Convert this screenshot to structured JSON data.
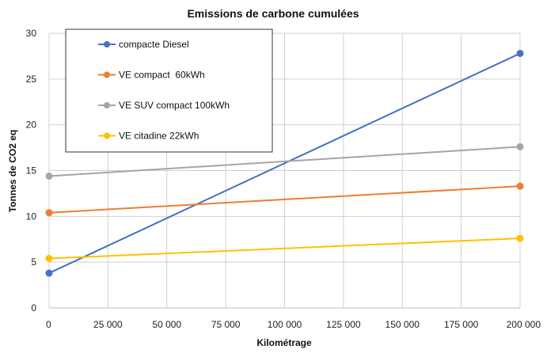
{
  "chart_data": {
    "type": "line",
    "title": "Emissions de carbone cumulées",
    "xlabel": "Kilométrage",
    "ylabel": "Tonnes de CO2 eq",
    "xlim": [
      0,
      200000
    ],
    "ylim": [
      0,
      30
    ],
    "x_ticks": [
      "0",
      "25 000",
      "50 000",
      "75 000",
      "100 000",
      "125 000",
      "150 000",
      "175 000",
      "200 000"
    ],
    "y_ticks": [
      "0",
      "5",
      "10",
      "15",
      "20",
      "25",
      "30"
    ],
    "grid": true,
    "legend_position": "top-left",
    "series": [
      {
        "name": "compacte Diesel",
        "color": "#4472c4",
        "x": [
          0,
          200000
        ],
        "y": [
          3.8,
          27.8
        ]
      },
      {
        "name": "VE compact  60kWh",
        "color": "#ed7d31",
        "x": [
          0,
          200000
        ],
        "y": [
          10.4,
          13.3
        ]
      },
      {
        "name": "VE SUV compact 100kWh",
        "color": "#a5a5a5",
        "x": [
          0,
          200000
        ],
        "y": [
          14.4,
          17.6
        ]
      },
      {
        "name": "VE citadine 22kWh",
        "color": "#ffc000",
        "x": [
          0,
          200000
        ],
        "y": [
          5.4,
          7.6
        ]
      }
    ]
  }
}
